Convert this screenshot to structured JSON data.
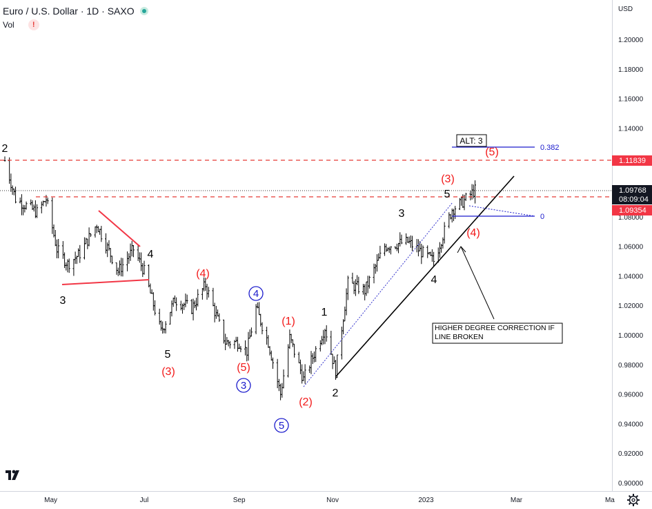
{
  "header": {
    "symbol_title": "Euro / U.S. Dollar · 1D · SAXO",
    "volume_label": "Vol",
    "warning_glyph": "!"
  },
  "axis": {
    "currency": "USD",
    "price_ticks": [
      "1.20000",
      "1.18000",
      "1.16000",
      "1.14000",
      "1.12000",
      "1.10000",
      "1.08000",
      "1.06000",
      "1.04000",
      "1.02000",
      "1.00000",
      "0.98000",
      "0.96000",
      "0.94000",
      "0.92000",
      "0.90000"
    ],
    "time_ticks": [
      "May",
      "Jul",
      "Sep",
      "Nov",
      "2023",
      "Mar",
      "Ma"
    ]
  },
  "price_labels": {
    "upper_level": "1.11839",
    "last_price": "1.09768",
    "countdown": "08:09:04",
    "lower_level": "1.09354"
  },
  "annotations": {
    "alt_box": "ALT: 3",
    "fib_382": "0.382",
    "fib_0": "0",
    "note": "HIGHER DEGREE CORRECTION IF LINE BROKEN",
    "waves_black": [
      "2",
      "3",
      "4",
      "5",
      "1",
      "2",
      "3",
      "4",
      "5"
    ],
    "waves_red": [
      "(3)",
      "(4)",
      "(5)",
      "(1)",
      "(2)",
      "(3)",
      "(4)",
      "(5)"
    ],
    "waves_circled": [
      "4",
      "3",
      "5"
    ]
  },
  "colors": {
    "wave_red": "#f21818",
    "wave_blue": "#1a1acc",
    "level_line": "#e53935",
    "label_bg": "#f23645"
  },
  "chart_data": {
    "type": "bar",
    "title": "Euro / U.S. Dollar · 1D · SAXO",
    "xlabel": "",
    "ylabel": "",
    "ylim": [
      0.89,
      1.215
    ],
    "x_ticks": [
      "May",
      "Jul",
      "Sep",
      "Nov",
      "2023",
      "Mar"
    ],
    "horizontal_levels": [
      1.11839,
      1.09768,
      1.09354
    ],
    "close_path": [
      {
        "x": "2022-04-01",
        "y": 1.118
      },
      {
        "x": "2022-04-08",
        "y": 1.092
      },
      {
        "x": "2022-04-22",
        "y": 1.083
      },
      {
        "x": "2022-04-28",
        "y": 1.092
      },
      {
        "x": "2022-05-05",
        "y": 1.058
      },
      {
        "x": "2022-05-12",
        "y": 1.048
      },
      {
        "x": "2022-05-20",
        "y": 1.055
      },
      {
        "x": "2022-05-31",
        "y": 1.075
      },
      {
        "x": "2022-06-14",
        "y": 1.043
      },
      {
        "x": "2022-06-24",
        "y": 1.058
      },
      {
        "x": "2022-07-01",
        "y": 1.043
      },
      {
        "x": "2022-07-12",
        "y": 1.002
      },
      {
        "x": "2022-07-21",
        "y": 1.024
      },
      {
        "x": "2022-08-01",
        "y": 1.018
      },
      {
        "x": "2022-08-10",
        "y": 1.034
      },
      {
        "x": "2022-08-23",
        "y": 0.995
      },
      {
        "x": "2022-09-01",
        "y": 0.995
      },
      {
        "x": "2022-09-06",
        "y": 0.989
      },
      {
        "x": "2022-09-12",
        "y": 1.018
      },
      {
        "x": "2022-09-20",
        "y": 0.995
      },
      {
        "x": "2022-09-28",
        "y": 0.96
      },
      {
        "x": "2022-10-04",
        "y": 0.998
      },
      {
        "x": "2022-10-13",
        "y": 0.97
      },
      {
        "x": "2022-10-27",
        "y": 1.005
      },
      {
        "x": "2022-11-03",
        "y": 0.975
      },
      {
        "x": "2022-11-11",
        "y": 1.035
      },
      {
        "x": "2022-11-22",
        "y": 1.03
      },
      {
        "x": "2022-12-05",
        "y": 1.06
      },
      {
        "x": "2022-12-20",
        "y": 1.063
      },
      {
        "x": "2023-01-06",
        "y": 1.05
      },
      {
        "x": "2023-01-18",
        "y": 1.085
      },
      {
        "x": "2023-01-25",
        "y": 1.09
      },
      {
        "x": "2023-02-02",
        "y": 1.098
      }
    ]
  }
}
